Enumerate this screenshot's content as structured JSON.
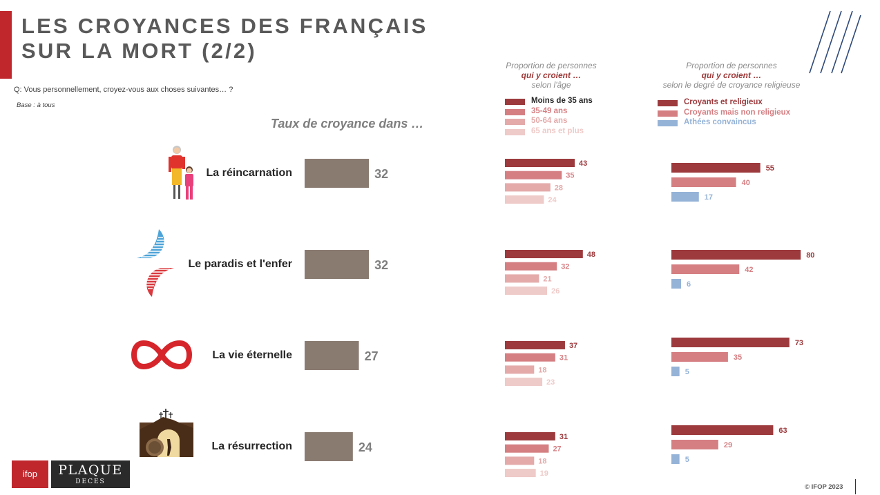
{
  "title_lines": [
    "LES CROYANCES DES FRANÇAIS",
    "SUR LA MORT (2/2)"
  ],
  "question": "Q: Vous personnellement, croyez-vous aux choses suivantes… ?",
  "base": "Base : à tous",
  "section_title": "Taux de croyance dans …",
  "copyright": "© IFOP 2023",
  "logos": {
    "ifop": "ifop",
    "plaque_top": "PLAQUE",
    "plaque_bottom": "DECES"
  },
  "panels": {
    "age": {
      "line1": "Proportion de personnes",
      "line2": "qui y croient …",
      "line3": "selon l'âge"
    },
    "religion": {
      "line1": "Proportion de personnes",
      "line2": "qui y croient …",
      "line3": "selon le degré de croyance religieuse"
    }
  },
  "icons": [
    "grandmother-child-icon",
    "wings-icon",
    "infinity-icon",
    "tomb-cross-icon"
  ],
  "colors": {
    "total": "#8a7b71",
    "age": [
      "#9c3a3d",
      "#d57f83",
      "#e4aaaa",
      "#eecac8"
    ],
    "religion": [
      "#9c3a3d",
      "#d57f83",
      "#95b3d7"
    ],
    "age_labels": [
      "#9c3a3d",
      "#d57f83",
      "#e4aaaa",
      "#eecac8"
    ],
    "religion_labels": [
      "#9c3a3d",
      "#d57f83",
      "#95b3d7"
    ]
  },
  "chart_data": {
    "type": "bar",
    "categories": [
      "La réincarnation",
      "Le paradis et l'enfer",
      "La vie éternelle",
      "La résurrection"
    ],
    "total": {
      "values": [
        32,
        32,
        27,
        24
      ]
    },
    "by_age": {
      "series": [
        {
          "name": "Moins de 35 ans",
          "values": [
            43,
            48,
            37,
            31
          ]
        },
        {
          "name": "35-49 ans",
          "values": [
            35,
            32,
            31,
            27
          ]
        },
        {
          "name": "50-64 ans",
          "values": [
            28,
            21,
            18,
            18
          ]
        },
        {
          "name": "65 ans et plus",
          "values": [
            24,
            26,
            23,
            19
          ]
        }
      ]
    },
    "by_religion": {
      "series": [
        {
          "name": "Croyants et religieux",
          "values": [
            55,
            80,
            73,
            63
          ]
        },
        {
          "name": "Croyants mais non religieux",
          "values": [
            40,
            42,
            35,
            29
          ]
        },
        {
          "name": "Athées convaincus",
          "values": [
            17,
            6,
            5,
            5
          ]
        }
      ]
    }
  }
}
